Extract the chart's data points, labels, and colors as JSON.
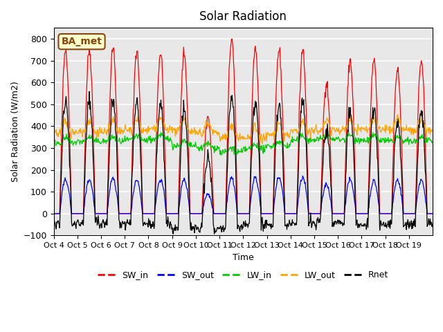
{
  "title": "Solar Radiation",
  "xlabel": "Time",
  "ylabel": "Solar Radiation (W/m2)",
  "ylim": [
    -100,
    850
  ],
  "yticks": [
    -100,
    0,
    100,
    200,
    300,
    400,
    500,
    600,
    700,
    800
  ],
  "xtick_labels": [
    "Oct 4",
    "Oct 5",
    "Oct 6",
    "Oct 7",
    "Oct 8",
    "Oct 9",
    "Oct 10",
    "Oct 11",
    "Oct 12",
    "Oct 13",
    "Oct 14",
    "Oct 15",
    "Oct 16",
    "Oct 17",
    "Oct 18",
    "Oct 19"
  ],
  "annotation_text": "BA_met",
  "annotation_color": "#8B4513",
  "annotation_bg": "#FFFFCC",
  "bg_color": "#E8E8E8",
  "line_colors": {
    "SW_in": "#FF0000",
    "SW_out": "#0000FF",
    "LW_in": "#00CC00",
    "LW_out": "#FFA500",
    "Rnet": "#000000"
  },
  "SW_in_peaks": [
    750,
    750,
    760,
    745,
    735,
    735,
    440,
    800,
    760,
    750,
    750,
    600,
    700,
    700,
    660,
    700
  ],
  "SW_out_peaks": [
    155,
    155,
    160,
    155,
    155,
    155,
    90,
    165,
    165,
    165,
    165,
    135,
    155,
    150,
    155,
    155
  ],
  "LW_in_base": [
    325,
    330,
    330,
    335,
    340,
    310,
    300,
    280,
    295,
    310,
    335,
    340,
    340,
    335,
    330,
    330
  ],
  "LW_out_base": [
    370,
    375,
    375,
    380,
    385,
    380,
    370,
    350,
    345,
    360,
    375,
    380,
    385,
    385,
    385,
    380
  ],
  "figsize": [
    6.4,
    4.8
  ],
  "dpi": 100
}
